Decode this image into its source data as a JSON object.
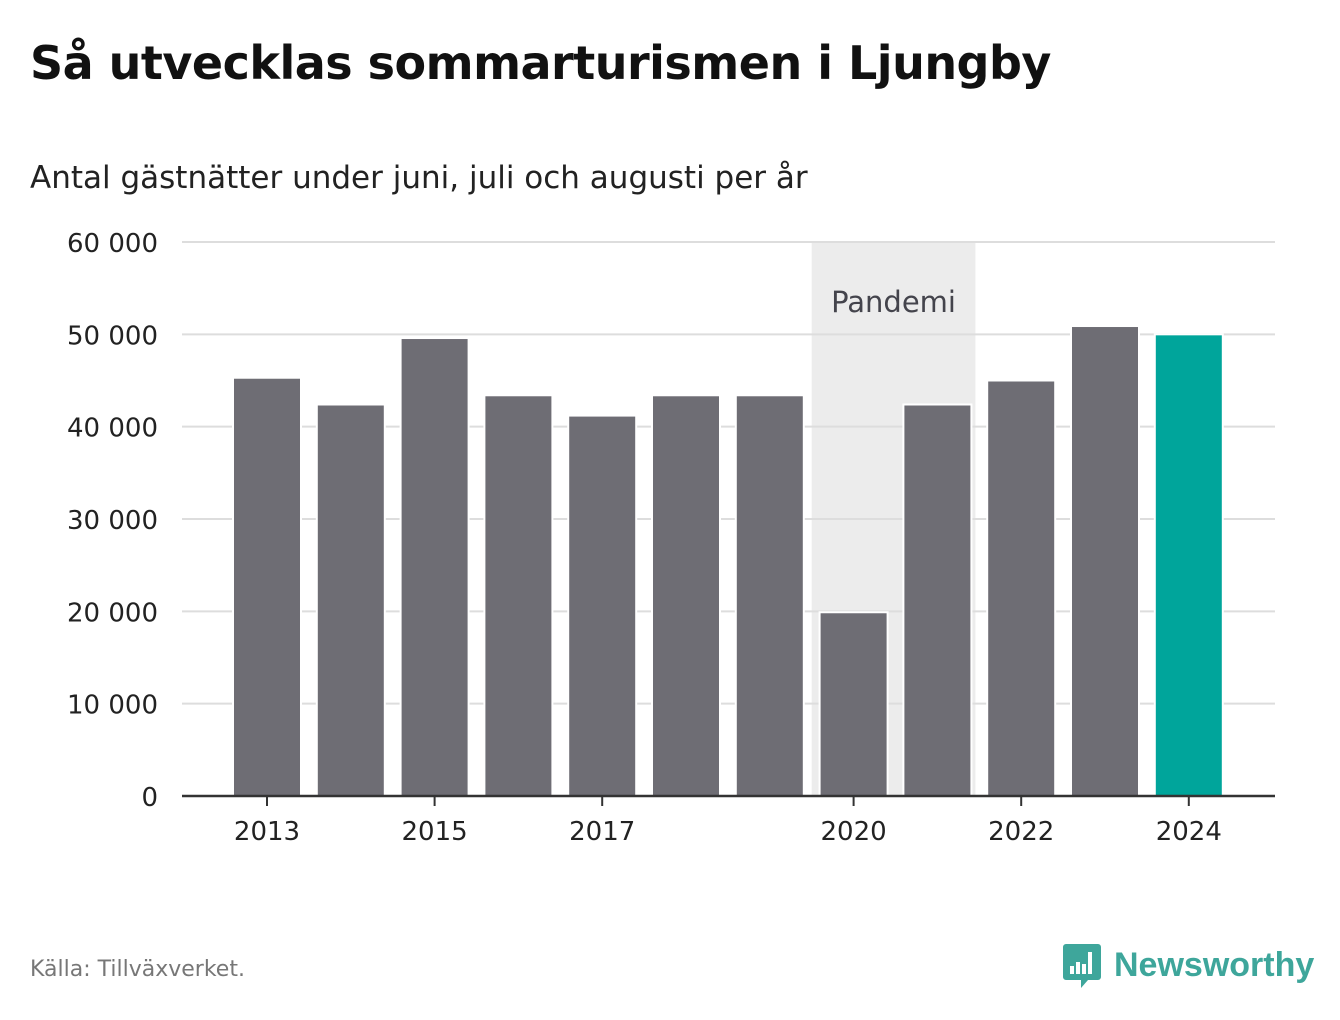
{
  "title": "Så utvecklas sommarturismen i Ljungby",
  "subtitle": "Antal gästnätter under juni, juli och augusti per år",
  "source": "Källa: Tillväxverket.",
  "brand": {
    "name": "Newsworthy",
    "logo_icon": "bar-chart-speech-bubble-icon"
  },
  "colors": {
    "bar": "#6e6d74",
    "highlight": "#00a59b",
    "band": "#ececec",
    "grid": "#dddddd",
    "axis": "#333333",
    "brand": "#3ea69b"
  },
  "chart_data": {
    "type": "bar",
    "title": "Så utvecklas sommarturismen i Ljungby",
    "subtitle": "Antal gästnätter under juni, juli och augusti per år",
    "categories": [
      "2013",
      "2014",
      "2015",
      "2016",
      "2017",
      "2018",
      "2019",
      "2020",
      "2021",
      "2022",
      "2023",
      "2024"
    ],
    "values": [
      45300,
      42400,
      49600,
      43400,
      41200,
      43400,
      43400,
      19900,
      42400,
      45000,
      50900,
      50000
    ],
    "highlight": "2024",
    "ylim": [
      0,
      60000
    ],
    "yticks": [
      0,
      10000,
      20000,
      30000,
      40000,
      50000,
      60000
    ],
    "ytick_labels": [
      "0",
      "10 000",
      "20 000",
      "30 000",
      "40 000",
      "50 000",
      "60 000"
    ],
    "xtick_labels": [
      "2013",
      "2015",
      "2017",
      "2020",
      "2022",
      "2024"
    ],
    "grid": true,
    "annotation": {
      "label": "Pandemi",
      "from": "2020",
      "to": "2021"
    }
  }
}
